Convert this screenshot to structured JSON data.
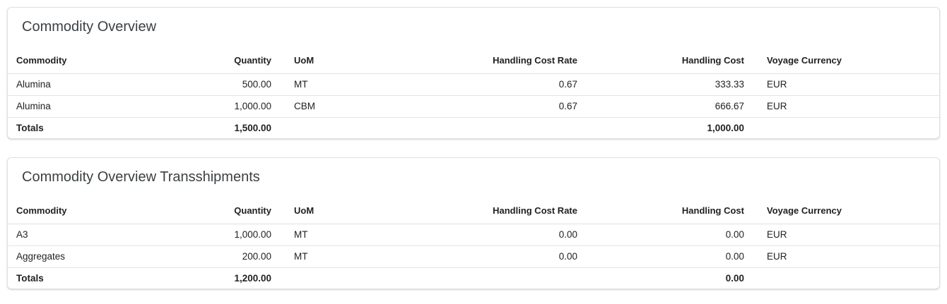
{
  "cards": [
    {
      "title": "Commodity Overview",
      "columns": [
        "Commodity",
        "Quantity",
        "UoM",
        "Handling Cost Rate",
        "Handling Cost",
        "Voyage Currency"
      ],
      "rows": [
        [
          "Alumina",
          "500.00",
          "MT",
          "0.67",
          "333.33",
          "EUR"
        ],
        [
          "Alumina",
          "1,000.00",
          "CBM",
          "0.67",
          "666.67",
          "EUR"
        ]
      ],
      "totals": {
        "label": "Totals",
        "quantity": "1,500.00",
        "handling_cost": "1,000.00"
      }
    },
    {
      "title": "Commodity Overview Transshipments",
      "columns": [
        "Commodity",
        "Quantity",
        "UoM",
        "Handling Cost Rate",
        "Handling Cost",
        "Voyage Currency"
      ],
      "rows": [
        [
          "A3",
          "1,000.00",
          "MT",
          "0.00",
          "0.00",
          "EUR"
        ],
        [
          "Aggregates",
          "200.00",
          "MT",
          "0.00",
          "0.00",
          "EUR"
        ]
      ],
      "totals": {
        "label": "Totals",
        "quantity": "1,200.00",
        "handling_cost": "0.00"
      }
    }
  ]
}
